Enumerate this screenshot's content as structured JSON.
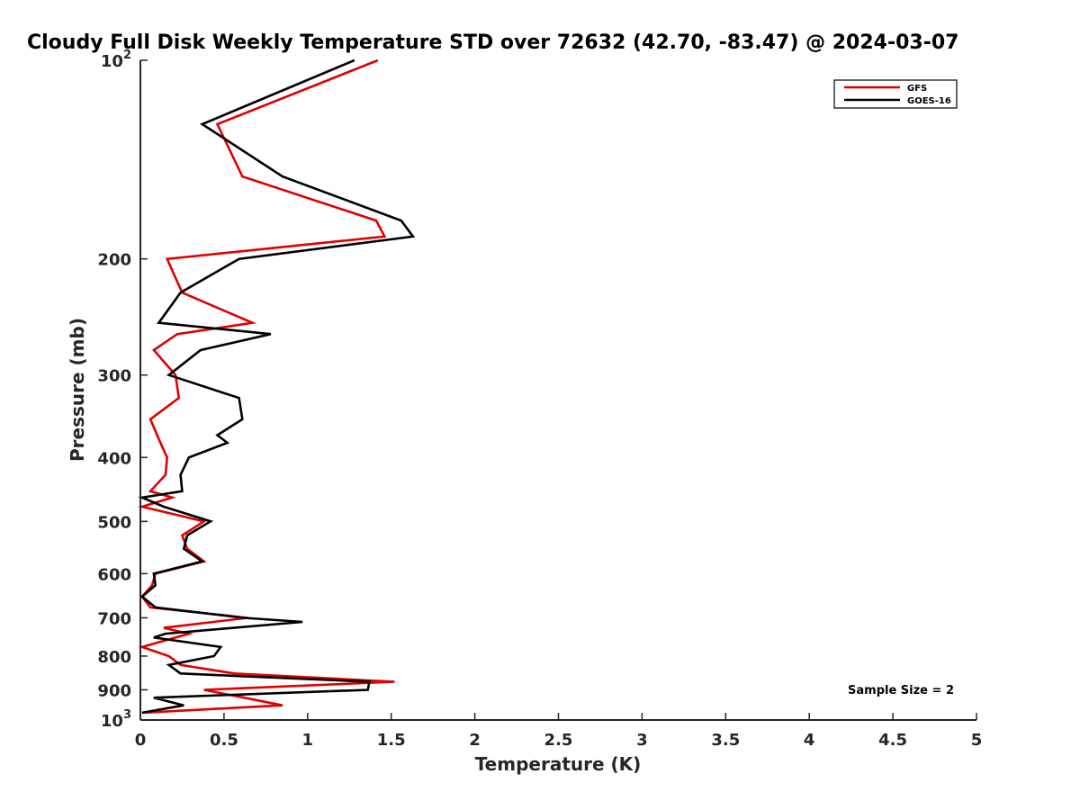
{
  "chart_data": {
    "type": "line",
    "title": "Cloudy Full Disk Weekly Temperature STD over 72632 (42.70, -83.47) @ 2024-03-07",
    "xlabel": "Temperature (K)",
    "ylabel": "Pressure (mb)",
    "xlim": [
      0,
      5
    ],
    "ylim": [
      100,
      1000
    ],
    "y_scale": "log",
    "y_reversed": true,
    "grid": false,
    "legend_position": "top-right",
    "x_ticks": [
      0,
      0.5,
      1,
      1.5,
      2,
      2.5,
      3,
      3.5,
      4,
      4.5,
      5
    ],
    "x_tick_labels": [
      "0",
      "0.5",
      "1",
      "1.5",
      "2",
      "2.5",
      "3",
      "3.5",
      "4",
      "4.5",
      "5"
    ],
    "y_ticks": [
      {
        "value": 100,
        "base": "10",
        "exp": "2"
      },
      {
        "value": 200,
        "label": "200"
      },
      {
        "value": 300,
        "label": "300"
      },
      {
        "value": 400,
        "label": "400"
      },
      {
        "value": 500,
        "label": "500"
      },
      {
        "value": 600,
        "label": "600"
      },
      {
        "value": 700,
        "label": "700"
      },
      {
        "value": 800,
        "label": "800"
      },
      {
        "value": 900,
        "label": "900"
      },
      {
        "value": 1000,
        "base": "10",
        "exp": "3"
      }
    ],
    "series": [
      {
        "name": "GFS",
        "color": "#e00000",
        "points": [
          [
            1.42,
            100
          ],
          [
            0.46,
            125
          ],
          [
            0.61,
            150
          ],
          [
            1.41,
            175
          ],
          [
            1.46,
            185
          ],
          [
            0.16,
            200
          ],
          [
            0.25,
            225
          ],
          [
            0.67,
            250
          ],
          [
            0.22,
            260
          ],
          [
            0.08,
            275
          ],
          [
            0.21,
            300
          ],
          [
            0.23,
            325
          ],
          [
            0.06,
            350
          ],
          [
            0.11,
            375
          ],
          [
            0.16,
            400
          ],
          [
            0.15,
            425
          ],
          [
            0.06,
            450
          ],
          [
            0.19,
            460
          ],
          [
            0.01,
            475
          ],
          [
            0.38,
            500
          ],
          [
            0.25,
            525
          ],
          [
            0.28,
            550
          ],
          [
            0.38,
            575
          ],
          [
            0.09,
            600
          ],
          [
            0.07,
            625
          ],
          [
            0.01,
            650
          ],
          [
            0.06,
            675
          ],
          [
            0.64,
            700
          ],
          [
            0.14,
            725
          ],
          [
            0.29,
            740
          ],
          [
            0.01,
            775
          ],
          [
            0.17,
            800
          ],
          [
            0.24,
            825
          ],
          [
            0.56,
            850
          ],
          [
            1.52,
            875
          ],
          [
            0.38,
            900
          ],
          [
            0.62,
            925
          ],
          [
            0.85,
            950
          ],
          [
            0.01,
            975
          ]
        ]
      },
      {
        "name": "GOES-16",
        "color": "#000000",
        "points": [
          [
            1.28,
            100
          ],
          [
            0.37,
            125
          ],
          [
            0.85,
            150
          ],
          [
            1.56,
            175
          ],
          [
            1.63,
            185
          ],
          [
            0.59,
            200
          ],
          [
            0.24,
            225
          ],
          [
            0.11,
            250
          ],
          [
            0.78,
            260
          ],
          [
            0.36,
            275
          ],
          [
            0.17,
            300
          ],
          [
            0.59,
            325
          ],
          [
            0.61,
            350
          ],
          [
            0.46,
            370
          ],
          [
            0.52,
            380
          ],
          [
            0.29,
            400
          ],
          [
            0.24,
            425
          ],
          [
            0.25,
            450
          ],
          [
            0.01,
            460
          ],
          [
            0.14,
            475
          ],
          [
            0.42,
            500
          ],
          [
            0.28,
            525
          ],
          [
            0.26,
            550
          ],
          [
            0.37,
            575
          ],
          [
            0.08,
            600
          ],
          [
            0.09,
            625
          ],
          [
            0.01,
            650
          ],
          [
            0.09,
            675
          ],
          [
            0.62,
            700
          ],
          [
            0.97,
            710
          ],
          [
            0.15,
            740
          ],
          [
            0.08,
            750
          ],
          [
            0.48,
            775
          ],
          [
            0.44,
            800
          ],
          [
            0.17,
            825
          ],
          [
            0.24,
            850
          ],
          [
            1.37,
            875
          ],
          [
            1.36,
            900
          ],
          [
            0.08,
            925
          ],
          [
            0.26,
            950
          ],
          [
            0.01,
            975
          ]
        ]
      }
    ],
    "annotation": "Sample Size = 2"
  }
}
